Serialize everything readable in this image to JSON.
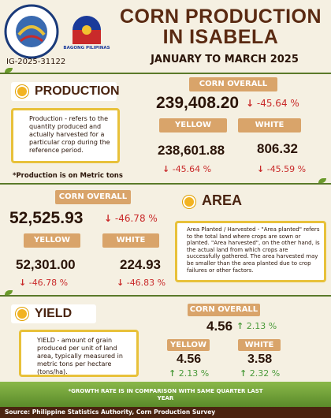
{
  "header": {
    "logo_text": "BAGONG PILIPINAS",
    "title": "CORN PRODUCTION IN ISABELA",
    "period": "JANUARY TO MARCH 2025",
    "code": "IG-2025-31122"
  },
  "production": {
    "heading": "PRODUCTION",
    "definition": "Production - refers to the quantity produced and actually harvested for a particular crop during the reference period.",
    "note": "*Production is on Metric tons",
    "overall": {
      "label": "CORN OVERALL",
      "value": "239,408.20",
      "growth": "-45.64 %"
    },
    "yellow": {
      "label": "YELLOW",
      "value": "238,601.88",
      "growth": "-45.64 %"
    },
    "white": {
      "label": "WHITE",
      "value": "806.32",
      "growth": "-45.59 %"
    }
  },
  "area": {
    "heading": "AREA",
    "definition": "Area Planted / Harvested - \"Area planted\" refers to the total land where crops are sown or planted. \"Area harvested\", on the other hand, is the actual land from which crops are successfully gathered. The area harvested may be smaller than the area planted due to crop failures or other factors.",
    "overall": {
      "label": "CORN OVERALL",
      "value": "52,525.93",
      "growth": "-46.78 %"
    },
    "yellow": {
      "label": "YELLOW",
      "value": "52,301.00",
      "growth": "-46.78 %"
    },
    "white": {
      "label": "WHITE",
      "value": "224.93",
      "growth": "-46.83 %"
    }
  },
  "yield": {
    "heading": "YIELD",
    "definition": "YIELD - amount of grain produced per unit of land area, typically measured in metric tons per hectare (tons/ha).",
    "overall": {
      "label": "CORN OVERALL",
      "value": "4.56",
      "growth": "2.13 %"
    },
    "yellow": {
      "label": "YELLOW",
      "value": "4.56",
      "growth": "2.13 %"
    },
    "white": {
      "label": "WHITE",
      "value": "3.58",
      "growth": "2.32 %"
    }
  },
  "footer": {
    "growth_note": "*GROWTH RATE IS IN COMPARISON WITH SAME QUARTER LAST YEAR",
    "source": "Source: Philippine Statistics Authority, Corn Production Survey"
  }
}
